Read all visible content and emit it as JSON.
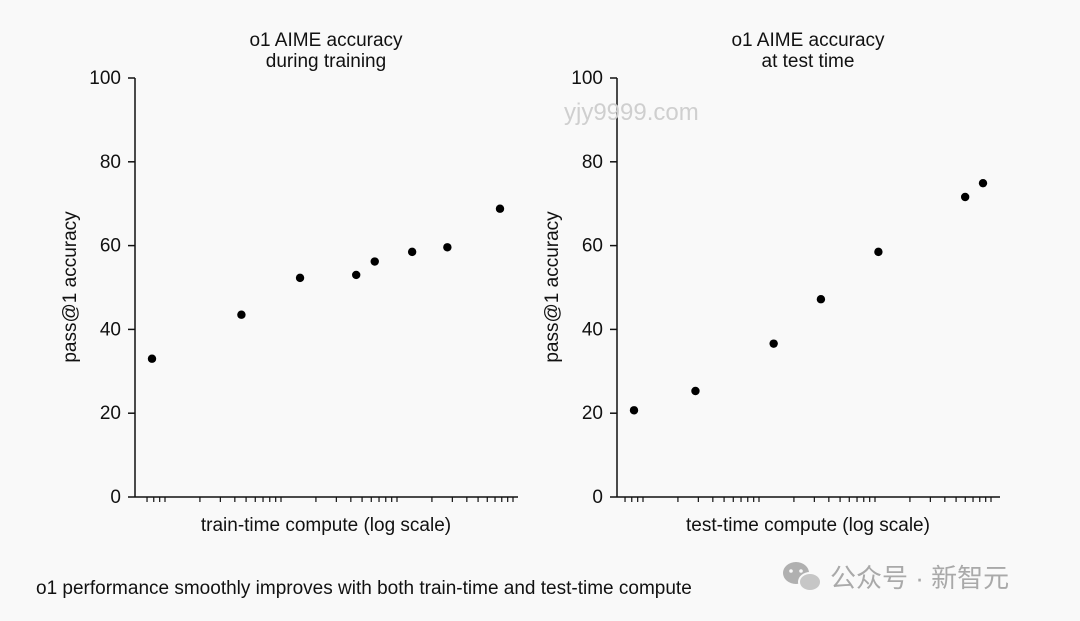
{
  "chart_data": [
    {
      "type": "scatter",
      "title": [
        "o1 AIME accuracy",
        "during training"
      ],
      "xlabel": "train-time compute (log scale)",
      "ylabel": "pass@1 accuracy",
      "xscale": "log",
      "x": [
        1,
        2.8,
        5.5,
        10.5,
        13,
        20,
        30,
        55
      ],
      "y": [
        33,
        43.5,
        52.3,
        53,
        56.2,
        58.5,
        59.6,
        68.8
      ],
      "ylim": [
        0,
        100
      ],
      "yticks": [
        0,
        20,
        40,
        60,
        80,
        100
      ],
      "grid": false
    },
    {
      "type": "scatter",
      "title": [
        "o1 AIME accuracy",
        "at test time"
      ],
      "xlabel": "test-time compute (log scale)",
      "ylabel": "pass@1 accuracy",
      "xscale": "log",
      "x": [
        1,
        2.2,
        6,
        11,
        23,
        70,
        88
      ],
      "y": [
        20.7,
        25.3,
        36.6,
        47.2,
        58.5,
        71.6,
        74.9
      ],
      "ylim": [
        0,
        100
      ],
      "yticks": [
        0,
        20,
        40,
        60,
        80,
        100
      ],
      "grid": false
    }
  ],
  "caption": "o1 performance smoothly improves with both train-time and test-time compute",
  "watermark": "yjy9999.com",
  "brand": {
    "icon": "wechat-icon",
    "text": "公众号 · 新智元"
  }
}
